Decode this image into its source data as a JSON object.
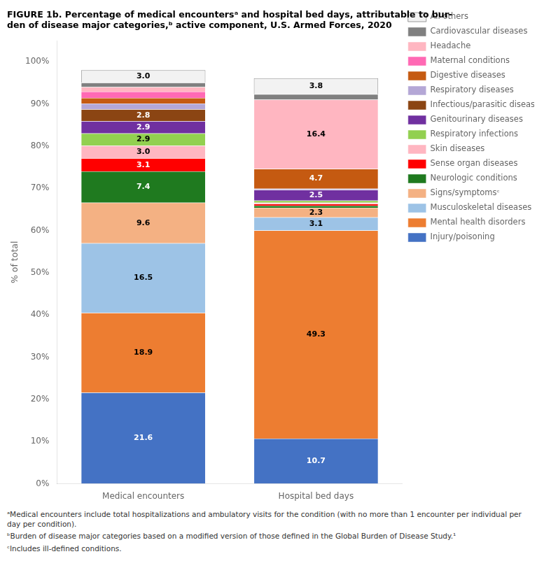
{
  "chart_data": {
    "type": "bar",
    "stacked": true,
    "title": [
      "FIGURE 1b. Percentage of medical encountersᵃ and hospital bed days, attributable to bur-",
      "den of disease major categories,ᵇ active component, U.S. Armed Forces, 2020"
    ],
    "ylabel": "% of total",
    "categories": [
      "Medical encounters",
      "Hospital bed days"
    ],
    "series": [
      {
        "name": "Injury/poisoning",
        "color": "#4472C4",
        "values": [
          21.6,
          10.7
        ],
        "value_labels": [
          "21.6",
          "10.7"
        ]
      },
      {
        "name": "Mental health disorders",
        "color": "#ED7D31",
        "values": [
          18.9,
          49.3
        ],
        "value_labels": [
          "18.9",
          "49.3"
        ]
      },
      {
        "name": "Musculoskeletal diseases",
        "color": "#9DC3E6",
        "values": [
          16.5,
          3.1
        ],
        "value_labels": [
          "16.5",
          "3.1"
        ]
      },
      {
        "name": "Signs/symptomsᶜ",
        "color": "#F4B183",
        "values": [
          9.6,
          2.3
        ],
        "value_labels": [
          "9.6",
          "2.3"
        ]
      },
      {
        "name": "Neurologic conditions",
        "color": "#1F7A1F",
        "values": [
          7.4,
          0.5
        ],
        "value_labels": [
          "7.4",
          null
        ]
      },
      {
        "name": "Sense organ diseases",
        "color": "#FF0000",
        "values": [
          3.1,
          0.4
        ],
        "value_labels": [
          "3.1",
          null
        ]
      },
      {
        "name": "Skin diseases",
        "color": "#FFB6C1",
        "values": [
          3.0,
          0.3
        ],
        "value_labels": [
          "3.0",
          null
        ]
      },
      {
        "name": "Respiratory infections",
        "color": "#92D050",
        "values": [
          2.9,
          0.5
        ],
        "value_labels": [
          "2.9",
          null
        ]
      },
      {
        "name": "Genitourinary diseases",
        "color": "#7030A0",
        "values": [
          2.9,
          2.5
        ],
        "value_labels": [
          "2.9",
          "2.5"
        ]
      },
      {
        "name": "Infectious/parasitic diseases",
        "color": "#8B4513",
        "values": [
          2.8,
          0.0
        ],
        "value_labels": [
          "2.8",
          null
        ]
      },
      {
        "name": "Respiratory diseases",
        "color": "#B4A7D6",
        "values": [
          1.4,
          0.3
        ],
        "value_labels": [
          null,
          null
        ]
      },
      {
        "name": "Digestive diseases",
        "color": "#C55A11",
        "values": [
          1.3,
          4.7
        ],
        "value_labels": [
          null,
          "4.7"
        ]
      },
      {
        "name": "Maternal conditions",
        "color": "#FF69B4",
        "values": [
          1.5,
          0.0
        ],
        "value_labels": [
          null,
          null
        ]
      },
      {
        "name": "Headache",
        "color": "#FFB6C1",
        "values": [
          1.1,
          16.4
        ],
        "value_labels": [
          null,
          "16.4"
        ]
      },
      {
        "name": "Cardiovascular diseases",
        "color": "#808080",
        "values": [
          1.0,
          1.3
        ],
        "value_labels": [
          null,
          null
        ]
      },
      {
        "name": "All others",
        "color": "#F2F2F2",
        "values": [
          3.0,
          3.8
        ],
        "value_labels": [
          "3.0",
          "3.8"
        ]
      }
    ],
    "ylim": [
      0,
      105
    ],
    "yticks": [
      {
        "value": 0,
        "label": "0%"
      },
      {
        "value": 10,
        "label": "10%"
      },
      {
        "value": 20,
        "label": "20%"
      },
      {
        "value": 30,
        "label": "30%"
      },
      {
        "value": 40,
        "label": "40%"
      },
      {
        "value": 50,
        "label": "50%"
      },
      {
        "value": 60,
        "label": "60%"
      },
      {
        "value": 70,
        "label": "70%"
      },
      {
        "value": 80,
        "label": "80%"
      },
      {
        "value": 90,
        "label": "90%"
      },
      {
        "value": 100,
        "label": "100%"
      }
    ],
    "grid": false,
    "legend": "right",
    "data_labels": true,
    "annotations": [
      "ᵃMedical encounters include total hospitalizations and ambulatory visits for the condition (with no more than 1 encounter per individual per day per condition).",
      "ᵇBurden of disease major categories based on a modified version of those defined in the Global Burden of Disease Study.¹",
      "ᶜIncludes ill-defined conditions."
    ]
  }
}
